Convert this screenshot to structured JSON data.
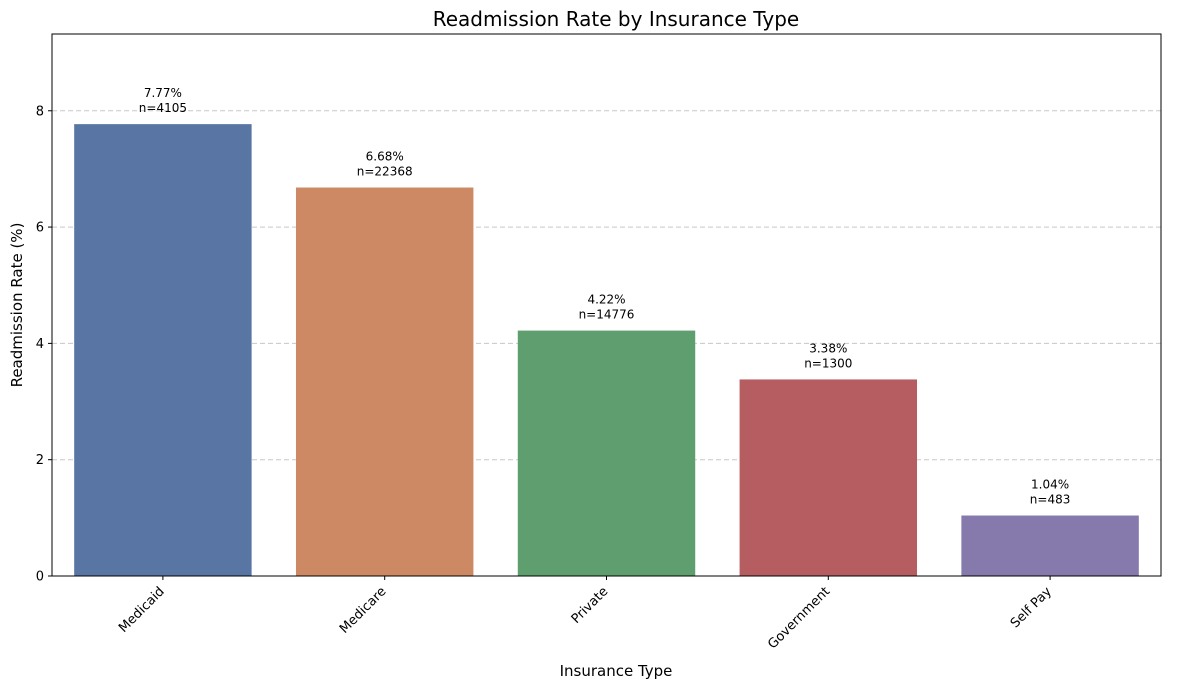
{
  "chart_data": {
    "type": "bar",
    "title": "Readmission Rate by Insurance Type",
    "xlabel": "Insurance Type",
    "ylabel": "Readmission Rate (%)",
    "ylim": [
      0,
      9.32
    ],
    "yticks": [
      0,
      2,
      4,
      6,
      8
    ],
    "grid": "y-dashed",
    "categories": [
      "Medicaid",
      "Medicare",
      "Private",
      "Government",
      "Self Pay"
    ],
    "values": [
      7.77,
      6.68,
      4.22,
      3.38,
      1.04
    ],
    "value_labels": [
      "7.77%",
      "6.68%",
      "4.22%",
      "3.38%",
      "1.04%"
    ],
    "count_labels": [
      "n=4105",
      "n=22368",
      "n=14776",
      "n=1300",
      "n=483"
    ],
    "colors": [
      "#5875a4",
      "#cc8963",
      "#5f9e6e",
      "#b55d60",
      "#857aab"
    ]
  }
}
